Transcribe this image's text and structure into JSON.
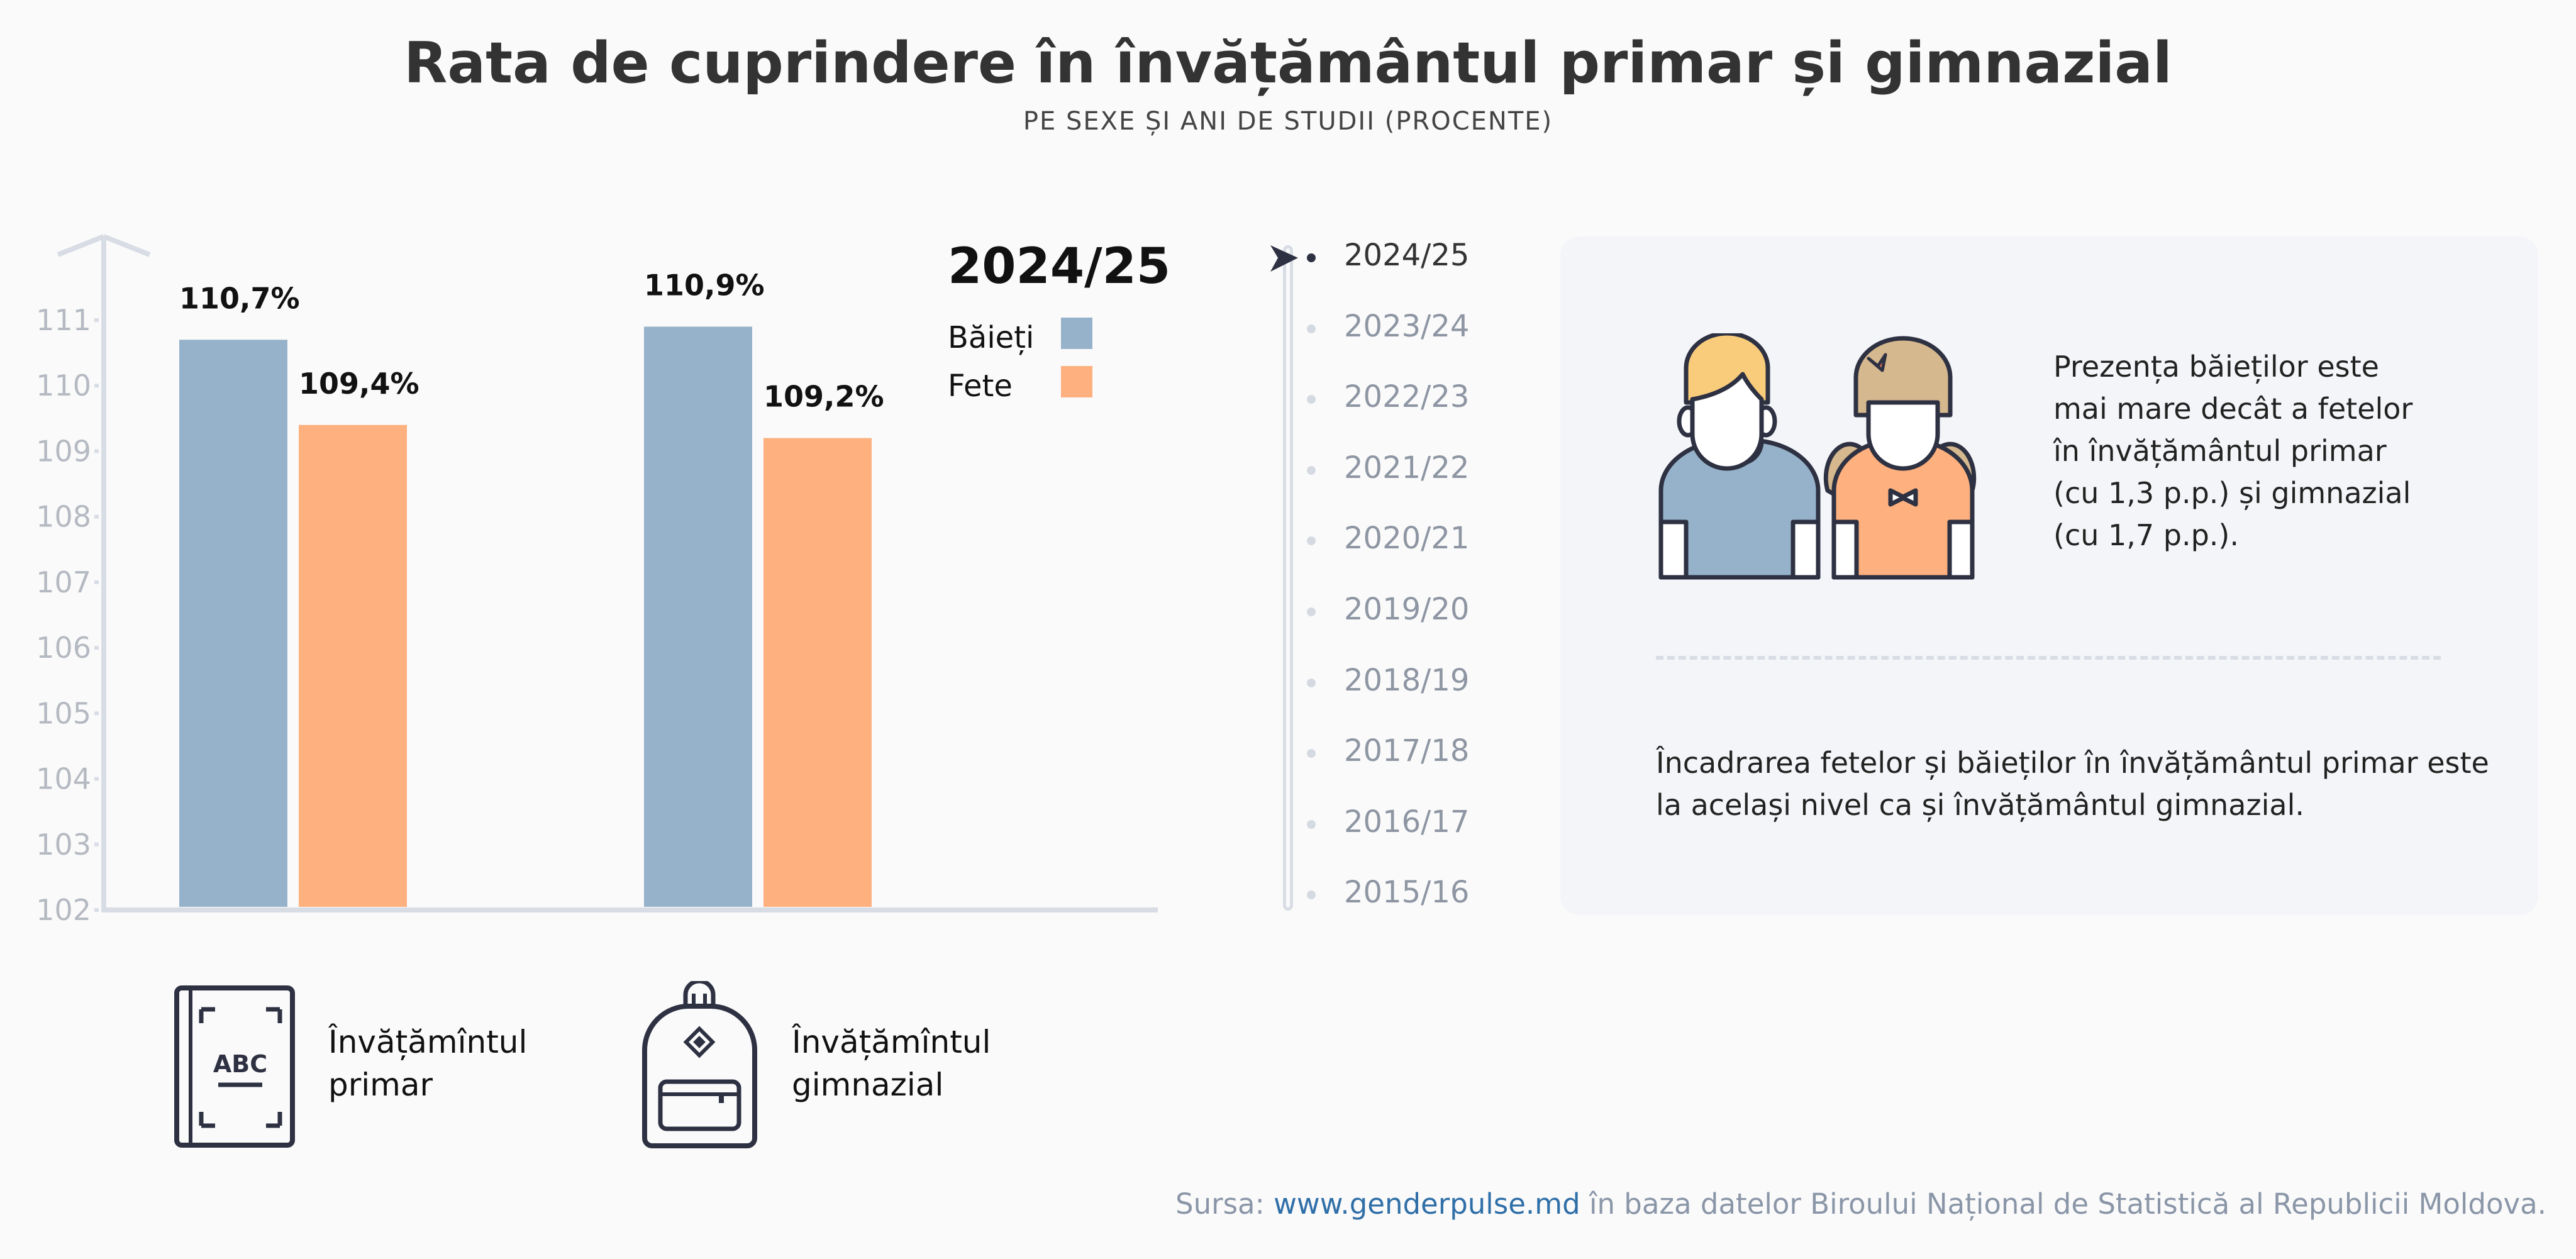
{
  "header": {
    "title": "Rata de cuprindere în învățământul primar și gimnazial",
    "subtitle": "PE SEXE ȘI ANI DE STUDII (PROCENTE)"
  },
  "chart_data": {
    "type": "bar",
    "title": "2024/25",
    "categories": [
      "Învățămîntul primar",
      "Învățămîntul gimnazial"
    ],
    "series": [
      {
        "name": "Băieți",
        "values": [
          110.7,
          110.9
        ],
        "labels": [
          "110,7%",
          "110,9%"
        ],
        "color": "#96b2ca"
      },
      {
        "name": "Fete",
        "values": [
          109.4,
          109.2
        ],
        "labels": [
          "109,4%",
          "109,2%"
        ],
        "color": "#feb07e"
      }
    ],
    "ylim": [
      102,
      111
    ],
    "yticks": [
      "102",
      "103",
      "104",
      "105",
      "106",
      "107",
      "108",
      "109",
      "110",
      "111"
    ],
    "legend": "top-right",
    "grid": false
  },
  "categories": {
    "primary": {
      "line1": "Învățămîntul",
      "line2": "primar",
      "icon": "abc-book-icon"
    },
    "secondary": {
      "line1": "Învățămîntul",
      "line2": "gimnazial",
      "icon": "backpack-icon"
    }
  },
  "timeline": {
    "selected": "2024/25",
    "items": [
      "2024/25",
      "2023/24",
      "2022/23",
      "2021/22",
      "2020/21",
      "2019/20",
      "2018/19",
      "2017/18",
      "2016/17",
      "2015/16"
    ]
  },
  "panel": {
    "para1": [
      "Prezența băieților este",
      "mai mare decât a fetelor",
      "în învățământul primar",
      "(cu 1,3 p.p.) și gimnazial",
      "(cu 1,7 p.p.)."
    ],
    "para2": [
      "Încadrarea fetelor și băieților în învățământul primar este",
      "la același nivel ca și învățământul gimnazial."
    ]
  },
  "footer": {
    "prefix": "Sursa: ",
    "link": "www.genderpulse.md",
    "suffix": " în baza datelor Biroului Național de Statistică al Republicii Moldova."
  },
  "colors": {
    "boys": "#96b2ca",
    "girls": "#feb07e",
    "axis": "#d8dde5",
    "icon_stroke": "#2d3142"
  }
}
